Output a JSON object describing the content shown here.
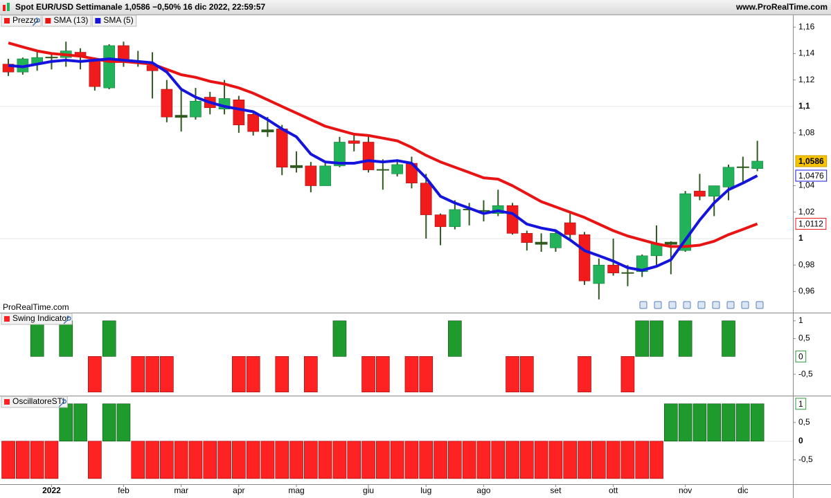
{
  "header": {
    "title": "Spot EUR/USD Settimanale 1,0586 −0,50% 16 dic 2022, 22:59:57",
    "site": "www.ProRealTime.com",
    "watermark": "ProRealTime.com"
  },
  "chart_data": [
    {
      "type": "candlestick",
      "name": "Prezzo",
      "open": [
        1.132,
        1.126,
        1.132,
        1.137,
        1.137,
        1.141,
        1.135,
        1.114,
        1.146,
        1.134,
        1.131,
        1.113,
        1.093,
        1.092,
        1.107,
        1.098,
        1.105,
        1.094,
        1.081,
        1.083,
        1.055,
        1.055,
        1.04,
        1.055,
        1.074,
        1.073,
        1.052,
        1.049,
        1.057,
        1.042,
        1.018,
        1.009,
        1.022,
        1.021,
        1.019,
        1.025,
        1.004,
        0.996,
        0.993,
        1.012,
        1.003,
        0.966,
        0.98,
        0.974,
        0.975,
        0.987,
        0.997,
        0.991,
        1.036,
        1.032,
        1.039,
        1.054,
        1.053
      ],
      "high": [
        1.136,
        1.137,
        1.142,
        1.14,
        1.149,
        1.144,
        1.137,
        1.147,
        1.149,
        1.142,
        1.141,
        1.12,
        1.112,
        1.114,
        1.111,
        1.12,
        1.108,
        1.095,
        1.092,
        1.086,
        1.066,
        1.058,
        1.058,
        1.077,
        1.079,
        1.078,
        1.06,
        1.06,
        1.062,
        1.049,
        1.019,
        1.029,
        1.027,
        1.029,
        1.037,
        1.027,
        1.006,
        1.004,
        1.007,
        1.019,
        1.005,
        0.985,
        1.0,
        0.98,
        0.988,
        1.01,
        0.998,
        1.036,
        1.049,
        1.04,
        1.056,
        1.062,
        1.074
      ],
      "low": [
        1.123,
        1.124,
        1.127,
        1.128,
        1.13,
        1.128,
        1.112,
        1.113,
        1.13,
        1.13,
        1.106,
        1.088,
        1.081,
        1.09,
        1.094,
        1.094,
        1.08,
        1.078,
        1.077,
        1.048,
        1.05,
        1.035,
        1.04,
        1.054,
        1.066,
        1.05,
        1.037,
        1.047,
        1.038,
        1.0,
        0.995,
        1.007,
        1.01,
        1.013,
        1.017,
        1.003,
        0.991,
        0.99,
        0.99,
        0.999,
        0.965,
        0.954,
        0.972,
        0.964,
        0.971,
        0.98,
        0.973,
        0.99,
        1.029,
        1.017,
        1.029,
        1.043,
        1.051
      ],
      "close": [
        1.126,
        1.136,
        1.137,
        1.137,
        1.142,
        1.138,
        1.115,
        1.146,
        1.135,
        1.134,
        1.127,
        1.092,
        1.092,
        1.104,
        1.099,
        1.106,
        1.086,
        1.081,
        1.082,
        1.054,
        1.054,
        1.04,
        1.055,
        1.073,
        1.072,
        1.052,
        1.052,
        1.056,
        1.042,
        1.018,
        1.009,
        1.022,
        1.022,
        1.021,
        1.025,
        1.004,
        0.997,
        0.997,
        1.004,
        1.003,
        0.968,
        0.98,
        0.974,
        0.974,
        0.987,
        0.996,
        0.996,
        1.034,
        1.032,
        1.04,
        1.054,
        1.054,
        1.0586
      ],
      "up_color": "#22b35a",
      "down_color": "#f21b1b",
      "wick_color": "#2f5a1f",
      "last_label": "1,0586",
      "overlays": [
        {
          "name": "SMA (13)",
          "color": "#e81414",
          "last_label": "1,0112",
          "values": [
            1.148,
            1.145,
            1.142,
            1.14,
            1.139,
            1.138,
            1.136,
            1.134,
            1.134,
            1.133,
            1.132,
            1.128,
            1.124,
            1.122,
            1.119,
            1.117,
            1.114,
            1.11,
            1.105,
            1.1,
            1.095,
            1.09,
            1.085,
            1.082,
            1.079,
            1.078,
            1.076,
            1.074,
            1.069,
            1.063,
            1.058,
            1.054,
            1.05,
            1.046,
            1.045,
            1.04,
            1.034,
            1.028,
            1.024,
            1.02,
            1.016,
            1.011,
            1.006,
            1.002,
            0.999,
            0.996,
            0.994,
            0.994,
            0.995,
            0.998,
            1.003,
            1.007,
            1.0112
          ]
        },
        {
          "name": "SMA (5)",
          "color": "#1414dc",
          "last_label": "1,0476",
          "values": [
            1.131,
            1.13,
            1.132,
            1.134,
            1.135,
            1.134,
            1.135,
            1.136,
            1.135,
            1.134,
            1.133,
            1.126,
            1.113,
            1.107,
            1.103,
            1.1,
            1.098,
            1.096,
            1.09,
            1.083,
            1.077,
            1.064,
            1.058,
            1.057,
            1.057,
            1.059,
            1.058,
            1.059,
            1.057,
            1.046,
            1.032,
            1.027,
            1.023,
            1.019,
            1.021,
            1.019,
            1.011,
            1.008,
            1.006,
            0.999,
            0.991,
            0.987,
            0.983,
            0.978,
            0.976,
            0.979,
            0.984,
            0.999,
            1.014,
            1.027,
            1.037,
            1.042,
            1.0476
          ]
        }
      ],
      "ylim": [
        0.944,
        1.169
      ],
      "yticks": [
        {
          "value": 1.16,
          "label": "1,16"
        },
        {
          "value": 1.14,
          "label": "1,14"
        },
        {
          "value": 1.12,
          "label": "1,12"
        },
        {
          "value": 1.1,
          "label": "1,1"
        },
        {
          "value": 1.08,
          "label": "1,08"
        },
        {
          "value": 1.04,
          "label": "1,04"
        },
        {
          "value": 1.02,
          "label": "1,02"
        },
        1,
        {
          "value": 0.98,
          "label": "0,98"
        },
        {
          "value": 0.96,
          "label": "0,96"
        }
      ],
      "xlim": [
        -0.58,
        54.47
      ],
      "xticks": [
        {
          "value": 3,
          "label": "2022"
        },
        {
          "value": 8,
          "label": "feb"
        },
        {
          "value": 12,
          "label": "mar"
        },
        {
          "value": 16,
          "label": "apr"
        },
        {
          "value": 20,
          "label": "mag"
        },
        {
          "value": 25,
          "label": "giu"
        },
        {
          "value": 29,
          "label": "lug"
        },
        {
          "value": 33,
          "label": "ago"
        },
        {
          "value": 38,
          "label": "set"
        },
        {
          "value": 42,
          "label": "ott"
        },
        {
          "value": 47,
          "label": "nov"
        },
        {
          "value": 51,
          "label": "dic"
        }
      ]
    },
    {
      "type": "bar",
      "name": "Swing Indicator",
      "up_color": "#1f9a2c",
      "down_color": "#ff2222",
      "last_label": "0",
      "values": [
        0,
        0,
        1,
        0,
        1,
        0,
        -1,
        1,
        0,
        -1,
        -1,
        -1,
        0,
        0,
        0,
        0,
        -1,
        -1,
        0,
        -1,
        0,
        -1,
        0,
        1,
        0,
        -1,
        -1,
        0,
        -1,
        -1,
        0,
        1,
        0,
        0,
        0,
        -1,
        -1,
        0,
        0,
        0,
        -1,
        0,
        0,
        -1,
        1,
        1,
        0,
        1,
        0,
        0,
        1,
        0,
        0
      ],
      "ylim": [
        -1.1,
        1.21
      ],
      "yticks": [
        1,
        {
          "value": 0.5,
          "label": "0,5"
        },
        {
          "value": -0.5,
          "label": "-0,5"
        }
      ]
    },
    {
      "type": "bar",
      "name": "OscillatoreSTI",
      "up_color": "#1f9a2c",
      "down_color": "#ff2222",
      "last_label": "1",
      "values": [
        -1,
        -1,
        -1,
        -1,
        1,
        1,
        -1,
        1,
        1,
        -1,
        -1,
        -1,
        -1,
        -1,
        -1,
        -1,
        -1,
        -1,
        -1,
        -1,
        -1,
        -1,
        -1,
        -1,
        -1,
        -1,
        -1,
        -1,
        -1,
        -1,
        -1,
        -1,
        -1,
        -1,
        -1,
        -1,
        -1,
        -1,
        -1,
        -1,
        -1,
        -1,
        -1,
        -1,
        -1,
        -1,
        1,
        1,
        1,
        1,
        1,
        1,
        1
      ],
      "ylim": [
        -1.15,
        1.2
      ],
      "yticks": [
        {
          "value": 0.5,
          "label": "0,5"
        },
        0,
        {
          "value": -0.5,
          "label": "-0,5"
        }
      ]
    }
  ]
}
